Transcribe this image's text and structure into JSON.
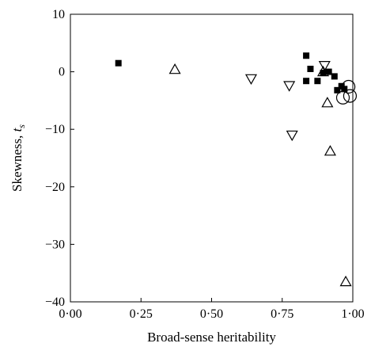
{
  "chart_data": {
    "type": "scatter",
    "xlabel": "Broad-sense heritability",
    "ylabel_main": "Skewness, ",
    "ylabel_symbol": "t",
    "ylabel_subscript": "s",
    "xlim": [
      0.0,
      1.0
    ],
    "ylim": [
      -40,
      10
    ],
    "x_ticks": [
      {
        "value": 0.0,
        "label": "0·00"
      },
      {
        "value": 0.25,
        "label": "0·25"
      },
      {
        "value": 0.5,
        "label": "0·50"
      },
      {
        "value": 0.75,
        "label": "0·75"
      },
      {
        "value": 1.0,
        "label": "1·00"
      }
    ],
    "y_ticks": [
      {
        "value": 10,
        "label": "10"
      },
      {
        "value": 0,
        "label": "0"
      },
      {
        "value": -10,
        "label": "−10"
      },
      {
        "value": -20,
        "label": "−20"
      },
      {
        "value": -30,
        "label": "−30"
      },
      {
        "value": -40,
        "label": "−40"
      }
    ],
    "grid": false,
    "legend": "none",
    "series": [
      {
        "marker": "filled-square",
        "color": "#000000",
        "points": [
          [
            0.17,
            1.5
          ],
          [
            0.835,
            2.8
          ],
          [
            0.85,
            0.5
          ],
          [
            0.835,
            -1.6
          ],
          [
            0.875,
            -1.6
          ],
          [
            0.895,
            -0.2
          ],
          [
            0.915,
            0.0
          ],
          [
            0.935,
            -0.8
          ],
          [
            0.945,
            -3.2
          ],
          [
            0.96,
            -2.5
          ],
          [
            0.97,
            -3.0
          ]
        ]
      },
      {
        "marker": "open-triangle-up",
        "color": "#000000",
        "points": [
          [
            0.37,
            0.4
          ],
          [
            0.895,
            0.0
          ],
          [
            0.91,
            -5.4
          ],
          [
            0.92,
            -13.8
          ],
          [
            0.975,
            -36.5
          ]
        ]
      },
      {
        "marker": "open-triangle-down",
        "color": "#000000",
        "points": [
          [
            0.64,
            -1.2
          ],
          [
            0.775,
            -2.4
          ],
          [
            0.785,
            -11.0
          ],
          [
            0.9,
            1.1
          ]
        ]
      },
      {
        "marker": "open-circle",
        "color": "#000000",
        "points": [
          [
            0.965,
            -4.5
          ],
          [
            0.985,
            -2.6
          ],
          [
            0.99,
            -4.2
          ]
        ]
      }
    ]
  }
}
